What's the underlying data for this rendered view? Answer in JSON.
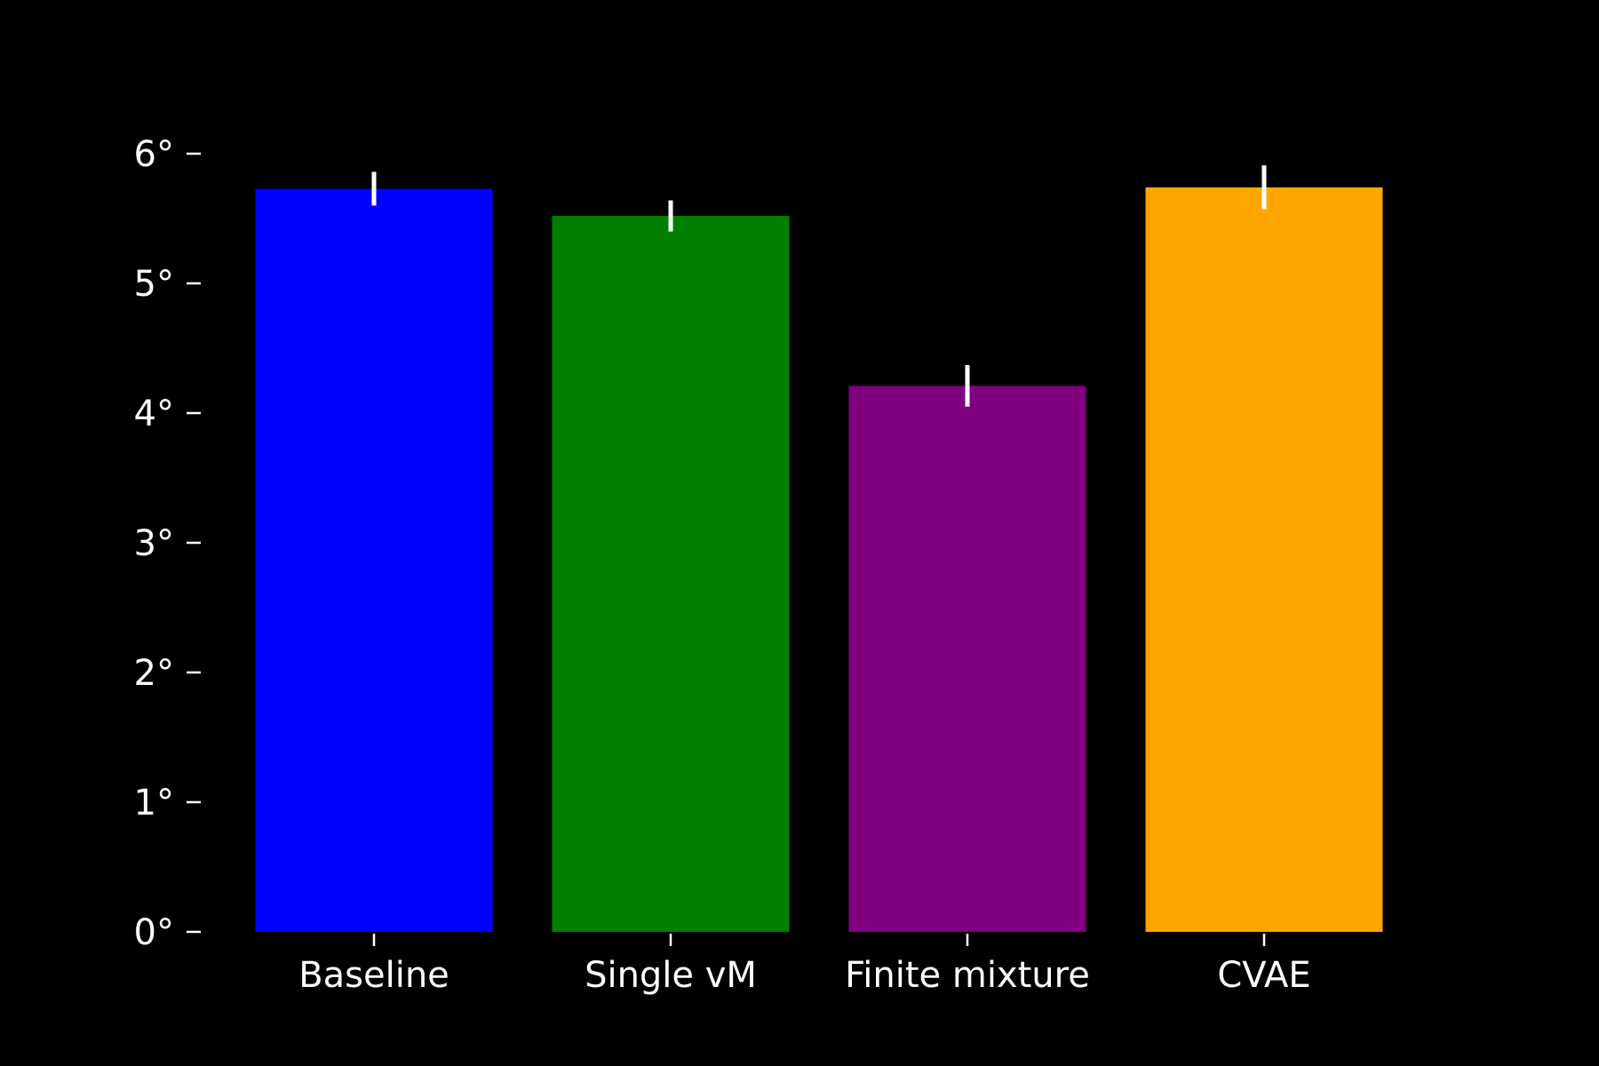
{
  "chart_data": {
    "type": "bar",
    "title": "",
    "xlabel": "",
    "ylabel": "",
    "categories": [
      "Baseline",
      "Single vM",
      "Finite mixture",
      "CVAE"
    ],
    "values": [
      5.73,
      5.52,
      4.21,
      5.74
    ],
    "errors": [
      0.13,
      0.12,
      0.16,
      0.17
    ],
    "colors": [
      "#0000ff",
      "#008000",
      "#800080",
      "#ffa500"
    ],
    "error_color": "#ffffff",
    "ylim": [
      0,
      6.0
    ],
    "yticks": [
      0,
      1,
      2,
      3,
      4,
      5,
      6
    ],
    "ytick_labels": [
      "0°",
      "1°",
      "2°",
      "3°",
      "4°",
      "5°",
      "6°"
    ],
    "grid": false,
    "legend": "none"
  },
  "theme": {
    "background": "#000000",
    "text_color": "#ffffff"
  }
}
